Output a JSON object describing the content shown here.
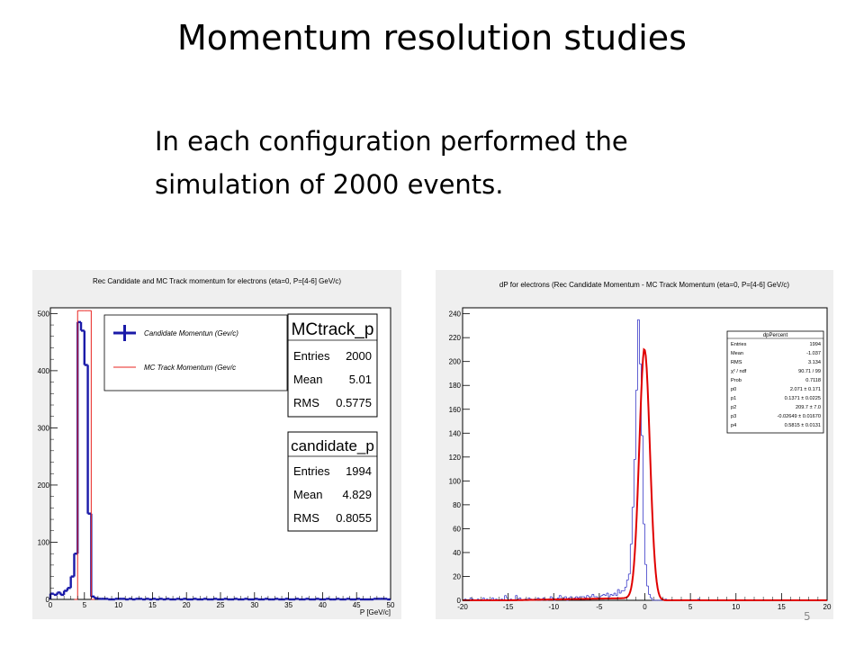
{
  "slide": {
    "title": "Momentum resolution studies",
    "body_lines": [
      "In each configuration performed the",
      "simulation of 2000 events."
    ],
    "page_number": "5"
  },
  "colors": {
    "frame_bg": "#efefef",
    "plot_bg": "#ffffff",
    "candidate": "#1a1aa8",
    "mctrack": "#e8231f",
    "fit": "#e00000",
    "hist2": "#3b3bc8"
  },
  "chart_data": [
    {
      "type": "histogram",
      "title": "Rec Candidate and MC Track momentum for electrons (eta=0, P=[4-6] GeV/c)",
      "xlabel": "P [GeV/c]",
      "ylabel": "",
      "xlim": [
        0,
        50
      ],
      "ylim": [
        0,
        510
      ],
      "xticks": [
        0,
        5,
        10,
        15,
        20,
        25,
        30,
        35,
        40,
        45,
        50
      ],
      "yticks": [
        0,
        100,
        200,
        300,
        400,
        500
      ],
      "bin_width": 0.5,
      "legend": {
        "placement": "top-left",
        "entries": [
          {
            "label": "Candidate Momentun (Gev/c)",
            "series": "candidate"
          },
          {
            "label": "MC Track Momentum (Gev/c",
            "series": "mctrack"
          }
        ]
      },
      "series": [
        {
          "key": "candidate",
          "x_start": 0,
          "values": [
            10,
            8,
            12,
            8,
            15,
            20,
            40,
            80,
            485,
            470,
            410,
            150,
            5,
            2,
            1,
            1,
            1,
            0,
            0,
            1,
            1,
            1,
            0,
            1,
            0,
            1,
            1,
            0,
            1,
            0,
            1,
            0,
            1,
            0,
            1,
            0,
            0,
            1,
            0,
            1,
            0,
            0,
            1,
            0,
            0,
            1,
            0,
            0,
            1,
            0,
            0,
            1,
            0,
            0,
            1,
            0,
            0,
            1,
            0,
            0,
            1,
            0,
            0,
            1,
            0,
            0,
            1,
            0,
            0,
            1,
            0,
            0,
            1,
            0,
            0,
            1,
            0,
            0,
            1,
            0,
            0,
            1,
            0,
            0,
            1,
            0,
            0,
            1,
            0,
            0,
            1,
            0,
            0,
            0,
            0,
            1,
            1,
            1,
            1,
            0
          ]
        },
        {
          "key": "mctrack",
          "x_start": 3.5,
          "values": [
            0,
            505,
            505,
            505,
            505,
            0
          ]
        }
      ],
      "stat_boxes": [
        {
          "name": "MCtrack_p",
          "rows": [
            {
              "label": "Entries",
              "value": "2000"
            },
            {
              "label": "Mean",
              "value": "5.01"
            },
            {
              "label": "RMS",
              "value": "0.5775"
            }
          ]
        },
        {
          "name": "candidate_p",
          "rows": [
            {
              "label": "Entries",
              "value": "1994"
            },
            {
              "label": "Mean",
              "value": "4.829"
            },
            {
              "label": "RMS",
              "value": "0.8055"
            }
          ]
        }
      ]
    },
    {
      "type": "histogram",
      "title": "dP for electrons (Rec Candidate Momentum - MC Track Momentum (eta=0, P=[4-6] GeV/c)",
      "xlabel": "",
      "ylabel": "",
      "xlim": [
        -20,
        20
      ],
      "ylim": [
        0,
        245
      ],
      "xticks": [
        -20,
        -15,
        -10,
        -5,
        0,
        5,
        10,
        15,
        20
      ],
      "yticks": [
        0,
        20,
        40,
        60,
        80,
        100,
        120,
        140,
        160,
        180,
        200,
        220,
        240
      ],
      "histogram": {
        "x_start": -20,
        "bin_width": 0.2,
        "values": [
          0,
          1,
          0,
          0,
          2,
          1,
          0,
          0,
          1,
          0,
          0,
          2,
          0,
          1,
          0,
          0,
          2,
          0,
          1,
          0,
          0,
          1,
          0,
          4,
          2,
          0,
          1,
          0,
          0,
          4,
          1,
          2,
          0,
          0,
          1,
          0,
          2,
          1,
          0,
          1,
          0,
          2,
          1,
          0,
          2,
          1,
          0,
          1,
          3,
          2,
          0,
          1,
          2,
          4,
          1,
          2,
          3,
          0,
          2,
          3,
          1,
          2,
          3,
          2,
          3,
          3,
          3,
          2,
          4,
          3,
          3,
          5,
          3,
          3,
          2,
          3,
          4,
          5,
          4,
          6,
          3,
          5,
          4,
          6,
          4,
          9,
          6,
          8,
          8,
          11,
          17,
          22,
          47,
          78,
          118,
          176,
          235,
          198,
          138,
          64,
          30,
          12,
          5,
          2,
          0,
          0,
          0,
          0,
          0,
          0,
          0,
          1,
          0,
          0,
          0,
          0,
          0,
          0,
          0,
          0,
          0,
          0,
          0,
          0,
          0,
          0,
          0,
          0,
          0,
          1,
          0,
          0,
          0,
          0,
          0,
          0,
          0,
          0,
          0,
          0,
          0,
          0,
          0,
          0,
          0,
          0,
          0,
          0,
          0,
          0,
          0,
          0,
          0,
          0,
          0,
          0,
          0,
          0,
          0,
          0,
          0,
          0,
          0,
          0,
          0,
          0,
          0,
          0,
          0,
          0,
          0,
          0,
          0,
          0,
          0,
          0,
          0,
          0,
          0,
          0,
          0,
          0,
          0,
          0,
          0,
          0,
          0,
          0,
          0,
          0,
          0,
          0,
          0,
          0,
          0,
          0,
          0,
          0,
          0,
          0
        ]
      },
      "fit": {
        "model": "gaus + pol1 (left side)",
        "amplitude": 209.7,
        "mean": -0.02649,
        "sigma": 0.5815,
        "baseline_p0": 2.071,
        "baseline_p1": 0.1371
      },
      "stat_box": {
        "name": "dpPercent",
        "rows": [
          {
            "label": "Entries",
            "value": "1994"
          },
          {
            "label": "Mean",
            "value": "-1.037"
          },
          {
            "label": "RMS",
            "value": "3.134"
          },
          {
            "label": "χ² / ndf",
            "value": "90.71 / 99"
          },
          {
            "label": "Prob",
            "value": "0.7118"
          },
          {
            "label": "p0",
            "value": "2.071 ± 0.171"
          },
          {
            "label": "p1",
            "value": "0.1371 ± 0.0225"
          },
          {
            "label": "p2",
            "value": "209.7 ± 7.0"
          },
          {
            "label": "p3",
            "value": "-0.02649 ± 0.01670"
          },
          {
            "label": "p4",
            "value": "0.5815 ± 0.0131"
          }
        ]
      }
    }
  ]
}
